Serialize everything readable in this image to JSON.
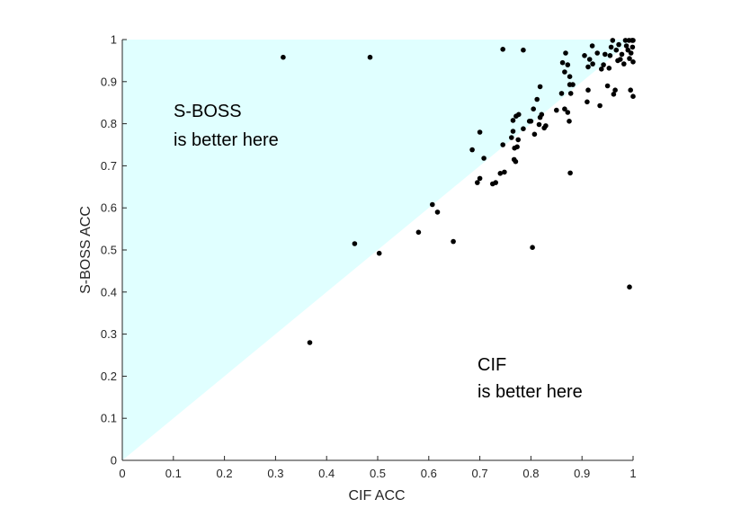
{
  "chart_data": {
    "type": "scatter",
    "title": "",
    "xlabel": "CIF ACC",
    "ylabel": "S-BOSS ACC",
    "xlim": [
      0,
      1
    ],
    "ylim": [
      0,
      1
    ],
    "x_ticks": [
      "0",
      "0.1",
      "0.2",
      "0.3",
      "0.4",
      "0.5",
      "0.6",
      "0.7",
      "0.8",
      "0.9",
      "1"
    ],
    "y_ticks": [
      "0",
      "0.1",
      "0.2",
      "0.3",
      "0.4",
      "0.5",
      "0.6",
      "0.7",
      "0.8",
      "0.9",
      "1"
    ],
    "grid": false,
    "region_color": "#e0ffff",
    "point_color": "#000000",
    "annotations": {
      "upper": [
        "S-BOSS",
        "is better here"
      ],
      "lower": [
        "CIF",
        "is better here"
      ]
    },
    "points": [
      [
        0.315,
        0.958
      ],
      [
        0.485,
        0.958
      ],
      [
        0.745,
        0.977
      ],
      [
        0.785,
        0.975
      ],
      [
        0.455,
        0.515
      ],
      [
        0.503,
        0.492
      ],
      [
        0.367,
        0.28
      ],
      [
        0.58,
        0.542
      ],
      [
        0.607,
        0.608
      ],
      [
        0.617,
        0.59
      ],
      [
        0.648,
        0.52
      ],
      [
        0.803,
        0.506
      ],
      [
        0.877,
        0.683
      ],
      [
        0.993,
        0.412
      ],
      [
        0.685,
        0.738
      ],
      [
        0.695,
        0.66
      ],
      [
        0.7,
        0.67
      ],
      [
        0.7,
        0.78
      ],
      [
        0.708,
        0.718
      ],
      [
        0.725,
        0.657
      ],
      [
        0.731,
        0.66
      ],
      [
        0.74,
        0.682
      ],
      [
        0.745,
        0.75
      ],
      [
        0.748,
        0.685
      ],
      [
        0.762,
        0.767
      ],
      [
        0.765,
        0.782
      ],
      [
        0.765,
        0.808
      ],
      [
        0.767,
        0.715
      ],
      [
        0.768,
        0.742
      ],
      [
        0.77,
        0.71
      ],
      [
        0.771,
        0.818
      ],
      [
        0.773,
        0.745
      ],
      [
        0.775,
        0.762
      ],
      [
        0.776,
        0.822
      ],
      [
        0.785,
        0.788
      ],
      [
        0.797,
        0.806
      ],
      [
        0.8,
        0.806
      ],
      [
        0.805,
        0.835
      ],
      [
        0.807,
        0.775
      ],
      [
        0.812,
        0.858
      ],
      [
        0.816,
        0.798
      ],
      [
        0.818,
        0.888
      ],
      [
        0.818,
        0.815
      ],
      [
        0.821,
        0.822
      ],
      [
        0.826,
        0.79
      ],
      [
        0.829,
        0.795
      ],
      [
        0.85,
        0.832
      ],
      [
        0.86,
        0.872
      ],
      [
        0.862,
        0.945
      ],
      [
        0.866,
        0.923
      ],
      [
        0.866,
        0.835
      ],
      [
        0.868,
        0.968
      ],
      [
        0.872,
        0.94
      ],
      [
        0.872,
        0.827
      ],
      [
        0.875,
        0.806
      ],
      [
        0.876,
        0.912
      ],
      [
        0.876,
        0.893
      ],
      [
        0.878,
        0.872
      ],
      [
        0.882,
        0.893
      ],
      [
        0.905,
        0.962
      ],
      [
        0.91,
        0.852
      ],
      [
        0.912,
        0.88
      ],
      [
        0.912,
        0.935
      ],
      [
        0.915,
        0.953
      ],
      [
        0.92,
        0.985
      ],
      [
        0.921,
        0.942
      ],
      [
        0.93,
        0.968
      ],
      [
        0.935,
        0.843
      ],
      [
        0.938,
        0.93
      ],
      [
        0.942,
        0.94
      ],
      [
        0.95,
        0.89
      ],
      [
        0.953,
        0.932
      ],
      [
        0.955,
        0.962
      ],
      [
        0.957,
        0.982
      ],
      [
        0.96,
        0.998
      ],
      [
        0.962,
        0.87
      ],
      [
        0.965,
        0.88
      ],
      [
        0.967,
        0.975
      ],
      [
        0.97,
        0.95
      ],
      [
        0.975,
        0.953
      ],
      [
        0.978,
        0.965
      ],
      [
        0.982,
        0.942
      ],
      [
        0.985,
        0.998
      ],
      [
        0.987,
        0.985
      ],
      [
        0.99,
        0.975
      ],
      [
        0.992,
        0.998
      ],
      [
        0.993,
        0.955
      ],
      [
        0.995,
        0.88
      ],
      [
        0.996,
        0.968
      ],
      [
        0.998,
        0.998
      ],
      [
        0.999,
        0.982
      ],
      [
        1.0,
        0.998
      ],
      [
        1.0,
        0.947
      ],
      [
        1.0,
        0.865
      ],
      [
        0.972,
        0.988
      ],
      [
        0.945,
        0.965
      ]
    ]
  }
}
